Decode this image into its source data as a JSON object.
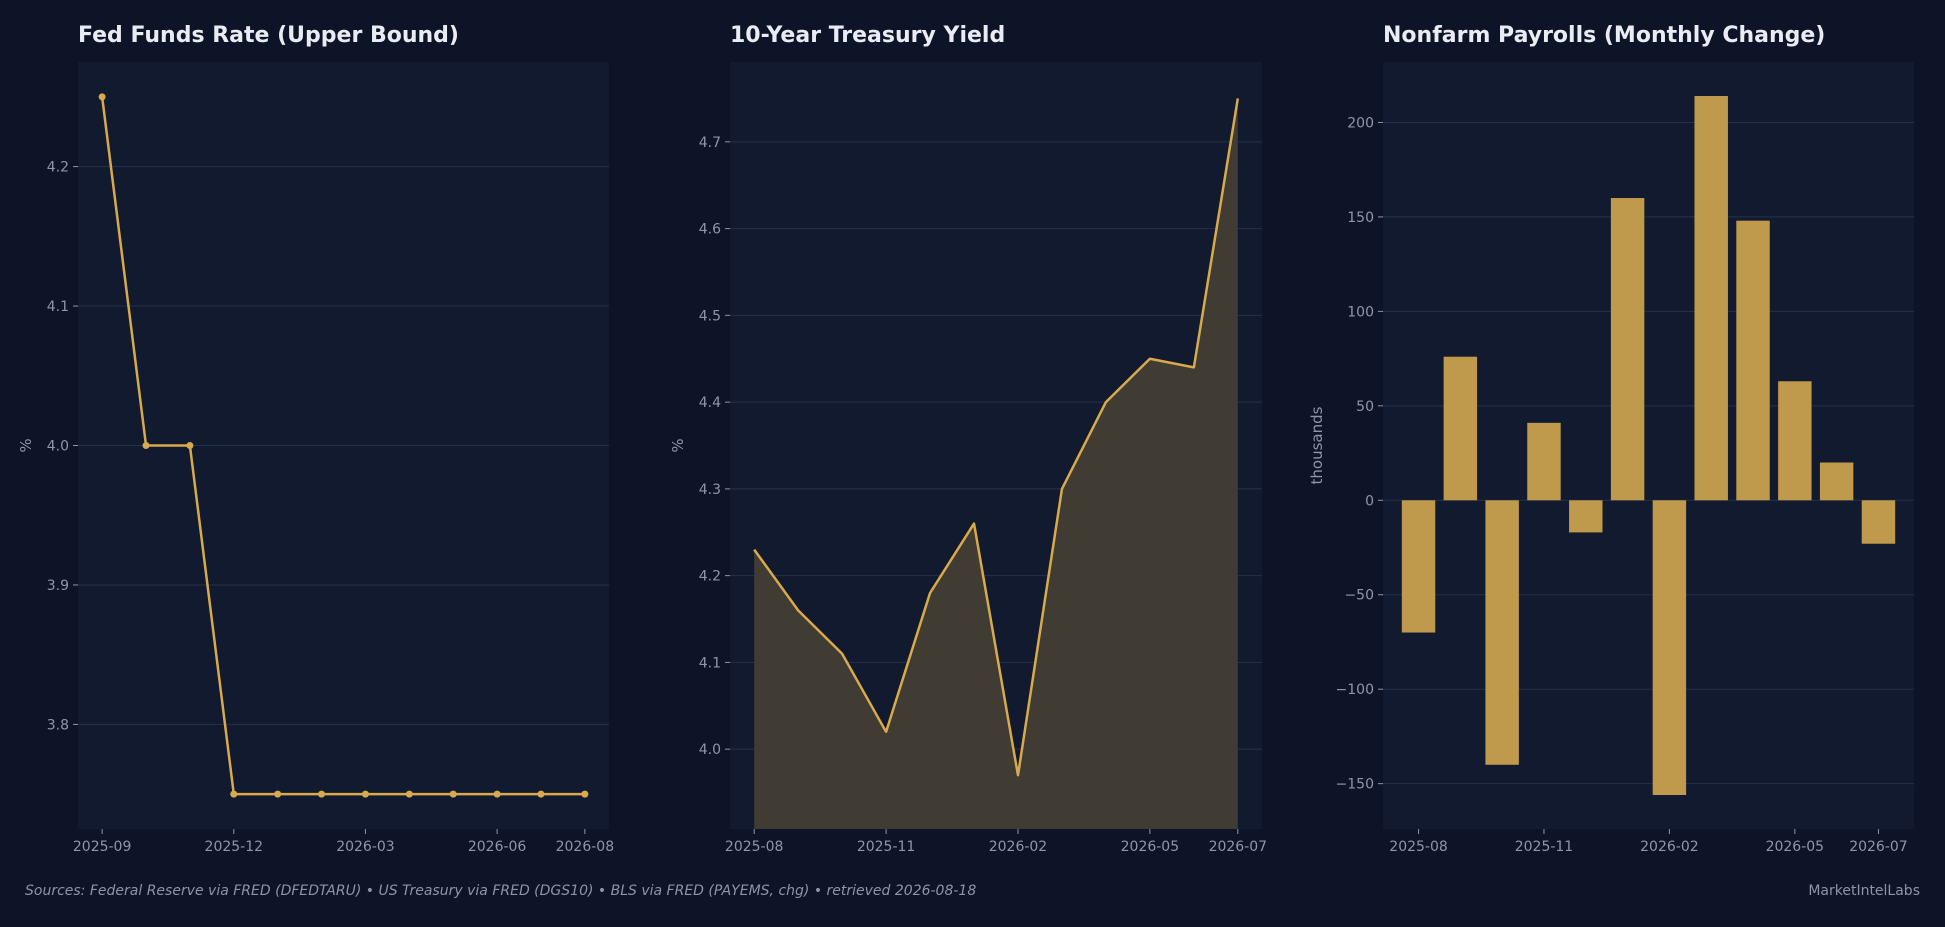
{
  "colors": {
    "background": "#0e1427",
    "plot_background": "#111a2e",
    "accent": "#d9aa4b",
    "bar": "#c09a4c",
    "area_fill": "#403b33",
    "grid": "#263048",
    "text": "#e9ecf3",
    "muted_text": "#8e96a8"
  },
  "footer": {
    "sources": "Sources: Federal Reserve via FRED (DFEDTARU)  •  US Treasury via FRED (DGS10)  •  BLS via FRED (PAYEMS, chg)  •  retrieved 2026-08-18",
    "brand": "MarketIntelLabs"
  },
  "chart_data": [
    {
      "type": "line",
      "title": "Fed Funds Rate (Upper Bound)",
      "xlabel": "",
      "ylabel": "%",
      "x": [
        "2025-09",
        "2025-10",
        "2025-11",
        "2025-12",
        "2026-01",
        "2026-02",
        "2026-03",
        "2026-04",
        "2026-05",
        "2026-06",
        "2026-07",
        "2026-08"
      ],
      "values": [
        4.25,
        4.0,
        4.0,
        3.75,
        3.75,
        3.75,
        3.75,
        3.75,
        3.75,
        3.75,
        3.75,
        3.75
      ],
      "markers": true,
      "ylim": [
        3.725,
        4.275
      ],
      "yticks": [
        3.8,
        3.9,
        4.0,
        4.1,
        4.2
      ],
      "ytick_labels": [
        "3.8",
        "3.9",
        "4.0",
        "4.1",
        "4.2"
      ],
      "xticks": [
        "2025-09",
        "2025-12",
        "2026-03",
        "2026-06",
        "2026-08"
      ],
      "grid": true
    },
    {
      "type": "area",
      "title": "10-Year Treasury Yield",
      "xlabel": "",
      "ylabel": "%",
      "x": [
        "2025-08",
        "2025-09",
        "2025-10",
        "2025-11",
        "2025-12",
        "2026-01",
        "2026-02",
        "2026-03",
        "2026-04",
        "2026-05",
        "2026-06",
        "2026-07"
      ],
      "values": [
        4.23,
        4.16,
        4.11,
        4.02,
        4.18,
        4.26,
        3.97,
        4.3,
        4.4,
        4.45,
        4.44,
        4.75
      ],
      "ylim": [
        3.908,
        4.792
      ],
      "yticks": [
        4.0,
        4.1,
        4.2,
        4.3,
        4.4,
        4.5,
        4.6,
        4.7
      ],
      "ytick_labels": [
        "4.0",
        "4.1",
        "4.2",
        "4.3",
        "4.4",
        "4.5",
        "4.6",
        "4.7"
      ],
      "xticks": [
        "2025-08",
        "2025-11",
        "2026-02",
        "2026-05",
        "2026-07"
      ],
      "grid": true
    },
    {
      "type": "bar",
      "title": "Nonfarm Payrolls (Monthly Change)",
      "xlabel": "",
      "ylabel": "thousands",
      "categories": [
        "2025-08",
        "2025-09",
        "2025-10",
        "2025-11",
        "2025-12",
        "2026-01",
        "2026-02",
        "2026-03",
        "2026-04",
        "2026-05",
        "2026-06",
        "2026-07"
      ],
      "values": [
        -70,
        76,
        -140,
        41,
        -17,
        160,
        -156,
        214,
        148,
        63,
        20,
        -23
      ],
      "ylim": [
        -174,
        232
      ],
      "yticks": [
        -150,
        -100,
        -50,
        0,
        50,
        100,
        150,
        200
      ],
      "ytick_labels": [
        "−150",
        "−100",
        "−50",
        "0",
        "50",
        "100",
        "150",
        "200"
      ],
      "xticks": [
        "2025-08",
        "2025-11",
        "2026-02",
        "2026-05",
        "2026-07"
      ],
      "grid": true
    }
  ]
}
